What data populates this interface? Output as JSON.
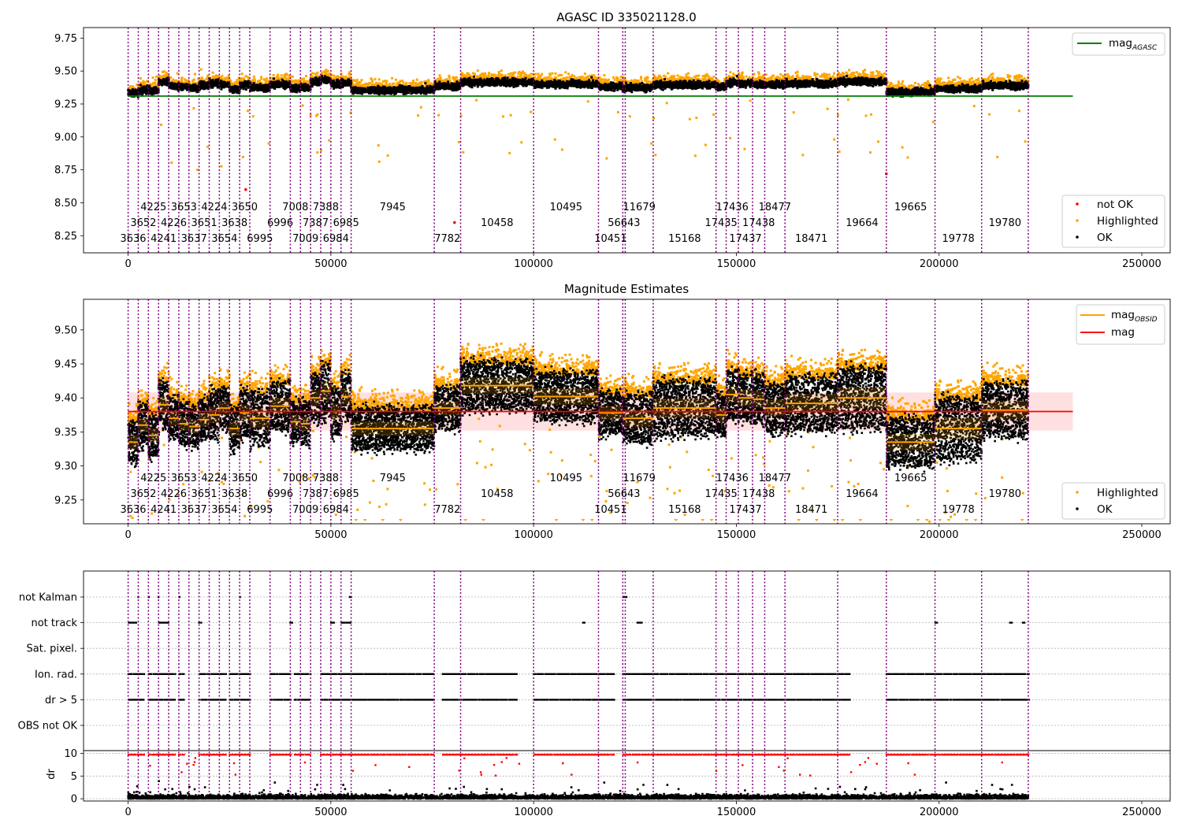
{
  "figure": {
    "panel1_title": "AGASC ID 335021128.0",
    "panel2_title": "Magnitude Estimates"
  },
  "chart_data": [
    {
      "type": "scatter",
      "title": "AGASC ID 335021128.0",
      "xlabel": "",
      "ylabel": "",
      "xlim": [
        -11000,
        257000
      ],
      "ylim": [
        8.12,
        9.83
      ],
      "x_ticks": [
        0,
        50000,
        100000,
        150000,
        200000,
        250000
      ],
      "x_tick_labels": [
        "0",
        "50000",
        "100000",
        "150000",
        "200000",
        "250000"
      ],
      "y_ticks": [
        8.25,
        8.5,
        8.75,
        9.0,
        9.25,
        9.5,
        9.75
      ],
      "y_tick_labels": [
        "8.25",
        "8.50",
        "8.75",
        "9.00",
        "9.25",
        "9.50",
        "9.75"
      ],
      "mag_agasc": 9.31,
      "mag_agasc_x_range": [
        0,
        233000
      ],
      "legend_upper": [
        {
          "label": "mag",
          "subscript": "AGASC",
          "color": "#008000",
          "kind": "line"
        }
      ],
      "legend_lower": [
        {
          "label": "not OK",
          "color": "#ff0000",
          "kind": "point"
        },
        {
          "label": "Highlighted",
          "color": "#ffa500",
          "kind": "point"
        },
        {
          "label": "OK",
          "color": "#000000",
          "kind": "point"
        }
      ],
      "not_ok_points": [
        {
          "x": 29000,
          "y": 8.6
        },
        {
          "x": 80500,
          "y": 8.35
        },
        {
          "x": 187000,
          "y": 8.72
        }
      ]
    },
    {
      "type": "scatter",
      "title": "Magnitude Estimates",
      "xlabel": "",
      "ylabel": "",
      "xlim": [
        -11000,
        257000
      ],
      "ylim": [
        9.215,
        9.545
      ],
      "x_ticks": [
        0,
        50000,
        100000,
        150000,
        200000,
        250000
      ],
      "x_tick_labels": [
        "0",
        "50000",
        "100000",
        "150000",
        "200000",
        "250000"
      ],
      "y_ticks": [
        9.25,
        9.3,
        9.35,
        9.4,
        9.45,
        9.5
      ],
      "y_tick_labels": [
        "9.25",
        "9.30",
        "9.35",
        "9.40",
        "9.45",
        "9.50"
      ],
      "mag": 9.38,
      "mag_band": [
        9.352,
        9.408
      ],
      "mag_x_range": [
        0,
        233000
      ],
      "legend_upper": [
        {
          "label": "mag",
          "subscript": "OBSID",
          "color": "#ffa500",
          "kind": "line"
        },
        {
          "label": "mag",
          "subscript": "",
          "color": "#ff0000",
          "kind": "line"
        }
      ],
      "legend_lower": [
        {
          "label": "Highlighted",
          "color": "#ffa500",
          "kind": "point"
        },
        {
          "label": "OK",
          "color": "#000000",
          "kind": "point"
        }
      ]
    },
    {
      "type": "scatter",
      "title": "",
      "xlabel": "",
      "ylabel": "dr",
      "xlim": [
        -11000,
        257000
      ],
      "x_ticks": [
        0,
        50000,
        100000,
        150000,
        200000,
        250000
      ],
      "x_tick_labels": [
        "0",
        "50000",
        "100000",
        "150000",
        "200000",
        "250000"
      ],
      "flag_rows": [
        "not Kalman",
        "not track",
        "Sat. pixel.",
        "Ion. rad.",
        "dr > 5",
        "OBS not OK"
      ],
      "dr_ylim": [
        -0.5,
        10.6
      ],
      "dr_ticks": [
        0,
        5,
        10
      ],
      "dr_tick_labels": [
        "0",
        "5",
        "10"
      ]
    }
  ],
  "observations": [
    {
      "id": "3636",
      "start": 0,
      "end": 2500,
      "row": 3,
      "mag": 9.335,
      "agasc_mag": 9.33,
      "obs_mag": 9.335,
      "spread": 0.03
    },
    {
      "id": "3652",
      "start": 2500,
      "end": 5000,
      "row": 2,
      "mag": 9.36,
      "agasc_mag": 9.355,
      "obs_mag": 9.36,
      "spread": 0.03
    },
    {
      "id": "4225",
      "start": 5000,
      "end": 7500,
      "row": 1,
      "mag": 9.345,
      "agasc_mag": 9.35,
      "obs_mag": 9.345,
      "spread": 0.03
    },
    {
      "id": "4241",
      "start": 7500,
      "end": 10000,
      "row": 3,
      "mag": 9.39,
      "agasc_mag": 9.42,
      "obs_mag": 9.39,
      "spread": 0.035
    },
    {
      "id": "4226",
      "start": 10000,
      "end": 12500,
      "row": 2,
      "mag": 9.37,
      "agasc_mag": 9.385,
      "obs_mag": 9.37,
      "spread": 0.03
    },
    {
      "id": "3653",
      "start": 12500,
      "end": 15000,
      "row": 1,
      "mag": 9.362,
      "agasc_mag": 9.38,
      "obs_mag": 9.362,
      "spread": 0.03
    },
    {
      "id": "3637",
      "start": 15000,
      "end": 17500,
      "row": 3,
      "mag": 9.358,
      "agasc_mag": 9.37,
      "obs_mag": 9.358,
      "spread": 0.03
    },
    {
      "id": "3651",
      "start": 17500,
      "end": 20000,
      "row": 2,
      "mag": 9.368,
      "agasc_mag": 9.39,
      "obs_mag": 9.368,
      "spread": 0.03
    },
    {
      "id": "4224",
      "start": 20000,
      "end": 22500,
      "row": 1,
      "mag": 9.375,
      "agasc_mag": 9.405,
      "obs_mag": 9.375,
      "spread": 0.035
    },
    {
      "id": "3654",
      "start": 22500,
      "end": 25000,
      "row": 3,
      "mag": 9.385,
      "agasc_mag": 9.395,
      "obs_mag": 9.385,
      "spread": 0.03
    },
    {
      "id": "3638",
      "start": 25000,
      "end": 27500,
      "row": 2,
      "mag": 9.355,
      "agasc_mag": 9.36,
      "obs_mag": 9.355,
      "spread": 0.03
    },
    {
      "id": "3650",
      "start": 27500,
      "end": 30000,
      "row": 1,
      "mag": 9.378,
      "agasc_mag": 9.39,
      "obs_mag": 9.378,
      "spread": 0.035
    },
    {
      "id": "6995",
      "start": 30000,
      "end": 35000,
      "row": 3,
      "mag": 9.37,
      "agasc_mag": 9.375,
      "obs_mag": 9.37,
      "spread": 0.04
    },
    {
      "id": "6996",
      "start": 35000,
      "end": 40000,
      "row": 2,
      "mag": 9.388,
      "agasc_mag": 9.4,
      "obs_mag": 9.388,
      "spread": 0.035
    },
    {
      "id": "7008",
      "start": 40000,
      "end": 42500,
      "row": 1,
      "mag": 9.365,
      "agasc_mag": 9.37,
      "obs_mag": 9.365,
      "spread": 0.03
    },
    {
      "id": "7009",
      "start": 42500,
      "end": 45000,
      "row": 3,
      "mag": 9.362,
      "agasc_mag": 9.375,
      "obs_mag": 9.362,
      "spread": 0.03
    },
    {
      "id": "7387",
      "start": 45000,
      "end": 47500,
      "row": 2,
      "mag": 9.4,
      "agasc_mag": 9.42,
      "obs_mag": 9.4,
      "spread": 0.035
    },
    {
      "id": "7388",
      "start": 47500,
      "end": 50000,
      "row": 1,
      "mag": 9.41,
      "agasc_mag": 9.43,
      "obs_mag": 9.41,
      "spread": 0.04
    },
    {
      "id": "6984",
      "start": 50000,
      "end": 52500,
      "row": 3,
      "mag": 9.38,
      "agasc_mag": 9.4,
      "obs_mag": 9.38,
      "spread": 0.035
    },
    {
      "id": "6985",
      "start": 52500,
      "end": 55000,
      "row": 2,
      "mag": 9.402,
      "agasc_mag": 9.41,
      "obs_mag": 9.402,
      "spread": 0.035
    },
    {
      "id": "7945",
      "start": 55000,
      "end": 75500,
      "row": 1,
      "mag": 9.355,
      "agasc_mag": 9.355,
      "obs_mag": 9.355,
      "spread": 0.03
    },
    {
      "id": "7782",
      "start": 75500,
      "end": 82000,
      "row": 3,
      "mag": 9.385,
      "agasc_mag": 9.385,
      "obs_mag": 9.385,
      "spread": 0.03
    },
    {
      "id": "10458",
      "start": 82000,
      "end": 100000,
      "row": 2,
      "mag": 9.418,
      "agasc_mag": 9.415,
      "obs_mag": 9.418,
      "spread": 0.035
    },
    {
      "id": "10495",
      "start": 100000,
      "end": 116000,
      "row": 1,
      "mag": 9.402,
      "agasc_mag": 9.4,
      "obs_mag": 9.402,
      "spread": 0.035
    },
    {
      "id": "10451",
      "start": 116000,
      "end": 122000,
      "row": 3,
      "mag": 9.378,
      "agasc_mag": 9.38,
      "obs_mag": 9.378,
      "spread": 0.03
    },
    {
      "id": "56643",
      "start": 122000,
      "end": 122600,
      "row": 2,
      "mag": 9.37,
      "agasc_mag": 9.37,
      "obs_mag": 9.37,
      "spread": 0.03
    },
    {
      "id": "11679",
      "start": 122600,
      "end": 129500,
      "row": 1,
      "mag": 9.37,
      "agasc_mag": 9.375,
      "obs_mag": 9.37,
      "spread": 0.035
    },
    {
      "id": "15168",
      "start": 129500,
      "end": 145000,
      "row": 3,
      "mag": 9.385,
      "agasc_mag": 9.395,
      "obs_mag": 9.385,
      "spread": 0.04
    },
    {
      "id": "17435",
      "start": 145000,
      "end": 147500,
      "row": 2,
      "mag": 9.375,
      "agasc_mag": 9.38,
      "obs_mag": 9.375,
      "spread": 0.03
    },
    {
      "id": "17436",
      "start": 147500,
      "end": 150500,
      "row": 1,
      "mag": 9.405,
      "agasc_mag": 9.41,
      "obs_mag": 9.405,
      "spread": 0.035
    },
    {
      "id": "17437",
      "start": 150500,
      "end": 154000,
      "row": 3,
      "mag": 9.4,
      "agasc_mag": 9.405,
      "obs_mag": 9.4,
      "spread": 0.035
    },
    {
      "id": "17438",
      "start": 154000,
      "end": 157000,
      "row": 2,
      "mag": 9.398,
      "agasc_mag": 9.4,
      "obs_mag": 9.398,
      "spread": 0.035
    },
    {
      "id": "18477",
      "start": 157000,
      "end": 162000,
      "row": 1,
      "mag": 9.385,
      "agasc_mag": 9.395,
      "obs_mag": 9.385,
      "spread": 0.035
    },
    {
      "id": "18471",
      "start": 162000,
      "end": 175000,
      "row": 3,
      "mag": 9.392,
      "agasc_mag": 9.405,
      "obs_mag": 9.392,
      "spread": 0.04
    },
    {
      "id": "19664",
      "start": 175000,
      "end": 187000,
      "row": 2,
      "mag": 9.4,
      "agasc_mag": 9.42,
      "obs_mag": 9.4,
      "spread": 0.045
    },
    {
      "id": "19665",
      "start": 187000,
      "end": 199000,
      "row": 1,
      "mag": 9.335,
      "agasc_mag": 9.34,
      "obs_mag": 9.335,
      "spread": 0.035
    },
    {
      "id": "19778",
      "start": 199000,
      "end": 210500,
      "row": 3,
      "mag": 9.355,
      "agasc_mag": 9.365,
      "obs_mag": 9.355,
      "spread": 0.045
    },
    {
      "id": "19780",
      "start": 210500,
      "end": 222000,
      "row": 2,
      "mag": 9.382,
      "agasc_mag": 9.39,
      "obs_mag": 9.382,
      "spread": 0.04
    }
  ],
  "flag_activity": [
    {
      "flag": "not Kalman",
      "intervals": [
        [
          2500,
          2700
        ],
        [
          5000,
          5200
        ],
        [
          7500,
          7700
        ],
        [
          12500,
          12700
        ],
        [
          27500,
          27800
        ],
        [
          54500,
          55000
        ],
        [
          122000,
          123000
        ]
      ]
    },
    {
      "flag": "not track",
      "intervals": [
        [
          0,
          2000
        ],
        [
          7500,
          10000
        ],
        [
          17500,
          18000
        ],
        [
          40000,
          40500
        ],
        [
          50000,
          51000
        ],
        [
          52500,
          55000
        ],
        [
          112000,
          112500
        ],
        [
          125500,
          127000
        ],
        [
          199000,
          199500
        ],
        [
          217500,
          218000
        ],
        [
          220500,
          221000
        ]
      ]
    },
    {
      "flag": "Ion. rad.",
      "intervals": [
        [
          0,
          4000
        ],
        [
          5000,
          11500
        ],
        [
          12500,
          14000
        ],
        [
          17500,
          24000
        ],
        [
          25000,
          30000
        ],
        [
          35000,
          40000
        ],
        [
          41000,
          45000
        ],
        [
          47500,
          75500
        ],
        [
          77500,
          96000
        ],
        [
          100000,
          120000
        ],
        [
          122000,
          178000
        ],
        [
          187000,
          222000
        ]
      ]
    },
    {
      "flag": "dr > 5",
      "intervals": [
        [
          0,
          4000
        ],
        [
          5000,
          11500
        ],
        [
          12500,
          14000
        ],
        [
          17500,
          24000
        ],
        [
          25000,
          30000
        ],
        [
          35000,
          40000
        ],
        [
          41000,
          45000
        ],
        [
          47500,
          75500
        ],
        [
          77500,
          96000
        ],
        [
          100000,
          120000
        ],
        [
          122000,
          178000
        ],
        [
          187000,
          222000
        ]
      ]
    }
  ]
}
